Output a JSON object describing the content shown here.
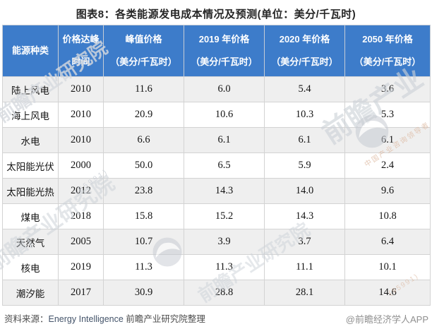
{
  "title": "图表8：各类能源发电成本情况及预测(单位：美分/千瓦时)",
  "colors": {
    "header_bg": "#3D7CCA",
    "header_text": "#FFFFFF",
    "alt_row_bg": "#EFEFEF",
    "cell_border": "#D3D3D3"
  },
  "table": {
    "header": [
      {
        "lines": [
          "能源种类"
        ]
      },
      {
        "lines": [
          "价格达峰",
          "时间"
        ]
      },
      {
        "lines": [
          "峰值价格",
          "（美分/千瓦时）"
        ]
      },
      {
        "lines": [
          "2019 年价格",
          "（美分/千瓦时）"
        ]
      },
      {
        "lines": [
          "2020 年价格",
          "（美分/千瓦时）"
        ]
      },
      {
        "lines": [
          "2050 年价格",
          "（美分/千瓦时）"
        ]
      }
    ]
  },
  "chart_data": {
    "type": "table",
    "title": "图表8：各类能源发电成本情况及预测(单位：美分/千瓦时)",
    "columns": [
      "能源种类",
      "价格达峰时间",
      "峰值价格（美分/千瓦时）",
      "2019年价格（美分/千瓦时）",
      "2020年价格（美分/千瓦时）",
      "2050年价格（美分/千瓦时）"
    ],
    "rows": [
      [
        "陆上风电",
        "2010",
        "11.6",
        "6.0",
        "5.4",
        "3.6"
      ],
      [
        "海上风电",
        "2010",
        "20.9",
        "10.6",
        "10.3",
        "5.3"
      ],
      [
        "水电",
        "2010",
        "6.6",
        "6.1",
        "6.1",
        "6.1"
      ],
      [
        "太阳能光伏",
        "2000",
        "50.0",
        "6.5",
        "5.9",
        "2.4"
      ],
      [
        "太阳能光热",
        "2012",
        "23.8",
        "14.3",
        "14.0",
        "9.6"
      ],
      [
        "煤电",
        "2018",
        "15.8",
        "15.2",
        "14.3",
        "10.8"
      ],
      [
        "天然气",
        "2005",
        "10.7",
        "3.9",
        "3.7",
        "6.4"
      ],
      [
        "核电",
        "2019",
        "11.3",
        "11.3",
        "11.1",
        "10.1"
      ],
      [
        "潮汐能",
        "2017",
        "30.9",
        "28.8",
        "28.1",
        "14.6"
      ]
    ]
  },
  "footer": {
    "source_label": "资料来源：",
    "source_en": "Energy Intelligence",
    "source_suffix": " 前瞻产业研究院整理",
    "credit": "@前瞻经济学人APP"
  },
  "watermark": {
    "brand_full": "前瞻产业研究院",
    "brand_large": "前瞻产业",
    "tagline": "中国产业咨询领导者",
    "digits": "(95991)"
  }
}
